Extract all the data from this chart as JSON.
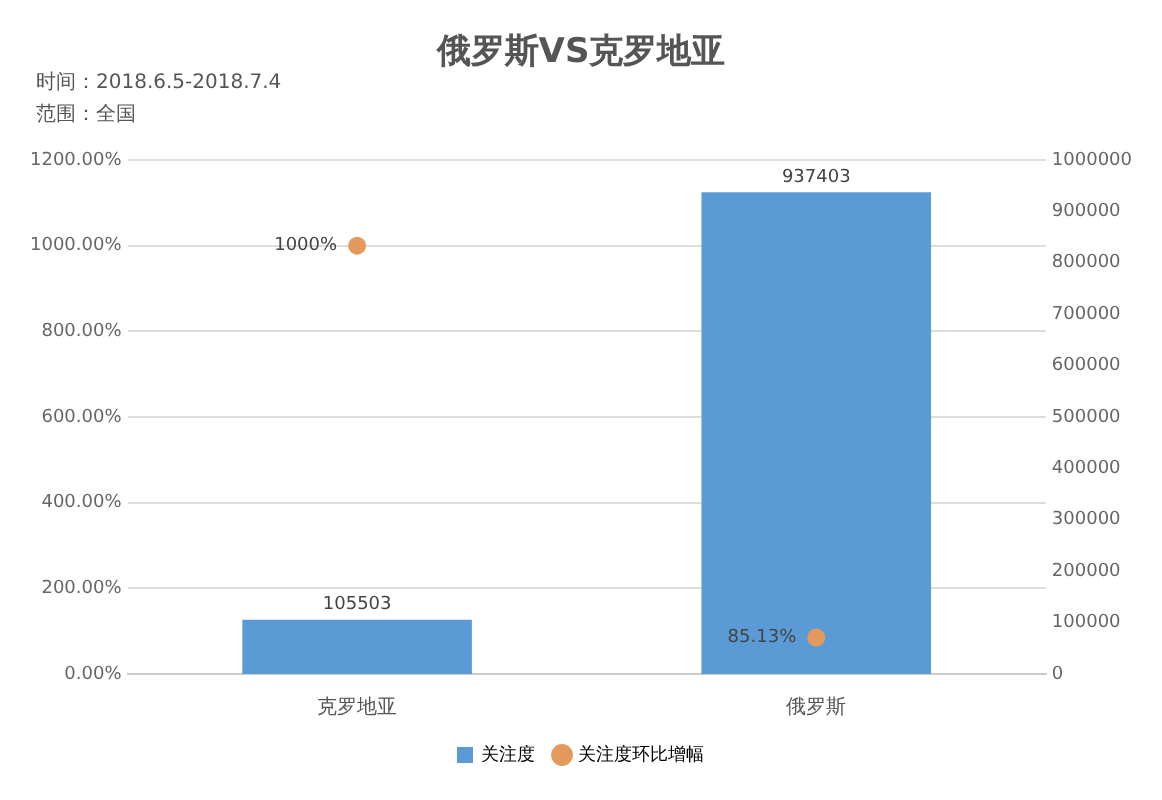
{
  "chart_data": {
    "type": "bar",
    "title": "俄罗斯VS克罗地亚",
    "annotations": [
      "时间：2018.6.5-2018.7.4",
      "范围：全国"
    ],
    "categories": [
      "克罗地亚",
      "俄罗斯"
    ],
    "series": [
      {
        "name": "关注度",
        "axis": "y2",
        "color": "#5b9bd5",
        "values": [
          105503,
          937403
        ],
        "value_labels": [
          "105503",
          "937403"
        ]
      },
      {
        "name": "关注度环比增幅",
        "type": "scatter",
        "axis": "y",
        "color": "#e39a5c",
        "marker": "circle",
        "values": [
          1000,
          85.13
        ],
        "value_labels": [
          "1000%",
          "85.13%"
        ]
      }
    ],
    "ylim": [
      0,
      1200
    ],
    "yticks": [
      {
        "value": 0,
        "label": "0.00%"
      },
      {
        "value": 200,
        "label": "200.00%"
      },
      {
        "value": 400,
        "label": "400.00%"
      },
      {
        "value": 600,
        "label": "600.00%"
      },
      {
        "value": 800,
        "label": "800.00%"
      },
      {
        "value": 1000,
        "label": "1000.00%"
      },
      {
        "value": 1200,
        "label": "1200.00%"
      }
    ],
    "y2lim": [
      0,
      1000000
    ],
    "y2ticks": [
      0,
      100000,
      200000,
      300000,
      400000,
      500000,
      600000,
      700000,
      800000,
      900000,
      1000000
    ],
    "grid": "y",
    "legend": "bottom"
  }
}
